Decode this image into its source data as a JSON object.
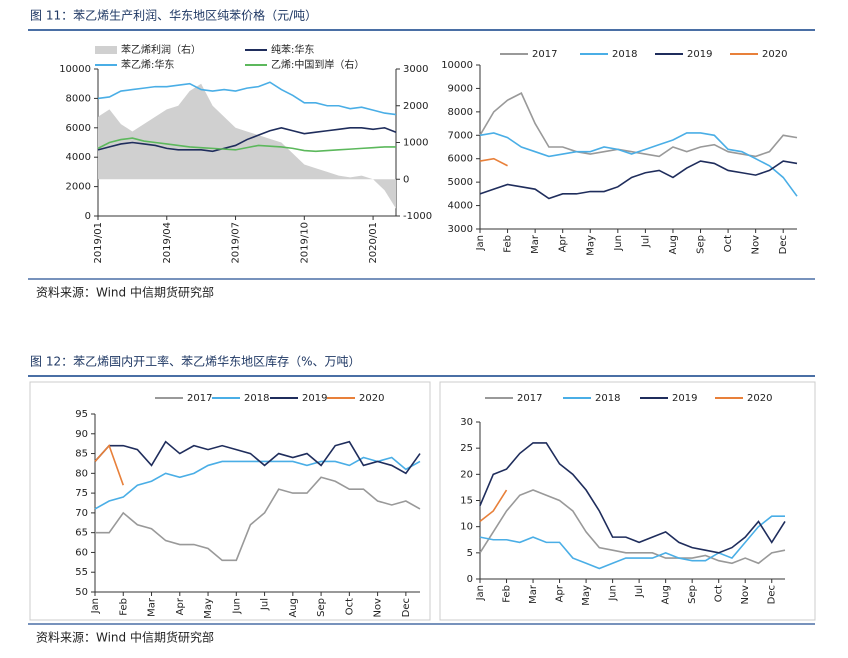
{
  "figures": [
    {
      "title": "图 11：苯乙烯生产利润、华东地区纯苯价格（元/吨）",
      "source": "资料来源：Wind  中信期货研究部"
    },
    {
      "title": "图 12：苯乙烯国内开工率、苯乙烯华东地区库存（%、万吨）",
      "source": "资料来源：Wind  中信期货研究部"
    }
  ],
  "chart_data": [
    {
      "type": "line",
      "categories": [
        "2019/01",
        null,
        null,
        null,
        null,
        null,
        "2019/04",
        null,
        null,
        null,
        null,
        null,
        "2019/07",
        null,
        null,
        null,
        null,
        null,
        "2019/10",
        null,
        null,
        null,
        null,
        null,
        "2020/01",
        null,
        null
      ],
      "ylim": [
        0,
        10000
      ],
      "yticks": [
        0,
        2000,
        4000,
        6000,
        8000,
        10000
      ],
      "y2lim": [
        -1000,
        3000
      ],
      "y2ticks": [
        -1000,
        0,
        1000,
        2000,
        3000
      ],
      "series": [
        {
          "name": "苯乙烯利润（右）",
          "color": "#d0d0d0",
          "style": "area",
          "axis": "y2",
          "values": [
            1700,
            1900,
            1500,
            1300,
            1500,
            1700,
            1900,
            2000,
            2400,
            2600,
            2000,
            1700,
            1400,
            1300,
            1200,
            1100,
            1000,
            700,
            400,
            300,
            200,
            100,
            50,
            100,
            0,
            -300,
            -800
          ]
        },
        {
          "name": "纯苯:华东",
          "color": "#1f2d5c",
          "values": [
            4500,
            4700,
            4900,
            5000,
            4900,
            4800,
            4600,
            4500,
            4500,
            4500,
            4400,
            4600,
            4800,
            5200,
            5500,
            5800,
            6000,
            5800,
            5600,
            5700,
            5800,
            5900,
            6000,
            6000,
            5900,
            6000,
            5700
          ]
        },
        {
          "name": "苯乙烯:华东",
          "color": "#4aaee6",
          "values": [
            8000,
            8100,
            8500,
            8600,
            8700,
            8800,
            8800,
            8900,
            9000,
            8600,
            8500,
            8600,
            8500,
            8700,
            8800,
            9100,
            8600,
            8200,
            7700,
            7700,
            7500,
            7500,
            7300,
            7400,
            7200,
            7000,
            6900
          ]
        },
        {
          "name": "乙烯:中国到岸（右）",
          "color": "#5cb85c",
          "axis": "y2",
          "values": [
            840,
            1000,
            1080,
            1120,
            1040,
            1000,
            960,
            920,
            880,
            860,
            840,
            820,
            800,
            860,
            920,
            900,
            880,
            840,
            780,
            760,
            780,
            800,
            820,
            840,
            860,
            880,
            880
          ]
        }
      ]
    },
    {
      "type": "line",
      "categories": [
        "Jan",
        null,
        "Feb",
        null,
        "Mar",
        null,
        "Apr",
        null,
        "May",
        null,
        "Jun",
        null,
        "Jul",
        null,
        "Aug",
        null,
        "Sep",
        null,
        "Oct",
        null,
        "Nov",
        null,
        "Dec",
        null
      ],
      "ylim": [
        3000,
        10000
      ],
      "yticks": [
        3000,
        4000,
        5000,
        6000,
        7000,
        8000,
        9000,
        10000
      ],
      "series": [
        {
          "name": "2017",
          "color": "#999999",
          "values": [
            7000,
            8000,
            8500,
            8800,
            7500,
            6500,
            6500,
            6300,
            6200,
            6300,
            6400,
            6300,
            6200,
            6100,
            6500,
            6300,
            6500,
            6600,
            6300,
            6200,
            6100,
            6300,
            7000,
            6900
          ]
        },
        {
          "name": "2018",
          "color": "#4aaee6",
          "values": [
            7000,
            7100,
            6900,
            6500,
            6300,
            6100,
            6200,
            6300,
            6300,
            6500,
            6400,
            6200,
            6400,
            6600,
            6800,
            7100,
            7100,
            7000,
            6400,
            6300,
            6000,
            5700,
            5200,
            4400
          ]
        },
        {
          "name": "2019",
          "color": "#1f2d5c",
          "values": [
            4500,
            4700,
            4900,
            4800,
            4700,
            4300,
            4500,
            4500,
            4600,
            4600,
            4800,
            5200,
            5400,
            5500,
            5200,
            5600,
            5900,
            5800,
            5500,
            5400,
            5300,
            5500,
            5900,
            5800
          ]
        },
        {
          "name": "2020",
          "color": "#e8803a",
          "values": [
            5900,
            6000,
            5700,
            null,
            null,
            null,
            null,
            null,
            null,
            null,
            null,
            null,
            null,
            null,
            null,
            null,
            null,
            null,
            null,
            null,
            null,
            null,
            null,
            null
          ]
        }
      ]
    },
    {
      "type": "line",
      "categories": [
        "Jan",
        null,
        "Feb",
        null,
        "Mar",
        null,
        "Apr",
        null,
        "May",
        null,
        "Jun",
        null,
        "Jul",
        null,
        "Aug",
        null,
        "Sep",
        null,
        "Oct",
        null,
        "Nov",
        null,
        "Dec",
        null
      ],
      "ylim": [
        50,
        95
      ],
      "yticks": [
        50,
        55,
        60,
        65,
        70,
        75,
        80,
        85,
        90,
        95
      ],
      "series": [
        {
          "name": "2017",
          "color": "#999999",
          "values": [
            65,
            65,
            70,
            67,
            66,
            63,
            62,
            62,
            61,
            58,
            58,
            67,
            70,
            76,
            75,
            75,
            79,
            78,
            76,
            76,
            73,
            72,
            73,
            71
          ]
        },
        {
          "name": "2018",
          "color": "#4aaee6",
          "values": [
            71,
            73,
            74,
            77,
            78,
            80,
            79,
            80,
            82,
            83,
            83,
            83,
            83,
            83,
            83,
            82,
            83,
            83,
            82,
            84,
            83,
            84,
            81,
            83
          ]
        },
        {
          "name": "2019",
          "color": "#1f2d5c",
          "values": [
            83,
            87,
            87,
            86,
            82,
            88,
            85,
            87,
            86,
            87,
            86,
            85,
            82,
            85,
            84,
            85,
            82,
            87,
            88,
            82,
            83,
            82,
            80,
            85
          ]
        },
        {
          "name": "2020",
          "color": "#e8803a",
          "values": [
            83,
            87,
            77,
            null,
            null,
            null,
            null,
            null,
            null,
            null,
            null,
            null,
            null,
            null,
            null,
            null,
            null,
            null,
            null,
            null,
            null,
            null,
            null,
            null
          ]
        }
      ]
    },
    {
      "type": "line",
      "categories": [
        "Jan",
        null,
        "Feb",
        null,
        "Mar",
        null,
        "Apr",
        null,
        "May",
        null,
        "Jun",
        null,
        "Jul",
        null,
        "Aug",
        null,
        "Sep",
        null,
        "Oct",
        null,
        "Nov",
        null,
        "Dec",
        null
      ],
      "ylim": [
        0,
        30
      ],
      "yticks": [
        0,
        5,
        10,
        15,
        20,
        25,
        30
      ],
      "series": [
        {
          "name": "2017",
          "color": "#999999",
          "values": [
            5,
            9,
            13,
            16,
            17,
            16,
            15,
            13,
            9,
            6,
            5.5,
            5,
            5,
            5,
            4,
            4,
            4,
            4.5,
            3.5,
            3,
            4,
            3,
            5,
            5.5
          ]
        },
        {
          "name": "2018",
          "color": "#4aaee6",
          "values": [
            8,
            7.5,
            7.5,
            7,
            8,
            7,
            7,
            4,
            3,
            2,
            3,
            4,
            4,
            4,
            5,
            4,
            3.5,
            3.5,
            5,
            4,
            7,
            10,
            12,
            12
          ]
        },
        {
          "name": "2019",
          "color": "#1f2d5c",
          "values": [
            14,
            20,
            21,
            24,
            26,
            26,
            22,
            20,
            17,
            13,
            8,
            8,
            7,
            8,
            9,
            7,
            6,
            5.5,
            5,
            6,
            8,
            11,
            7,
            11
          ]
        },
        {
          "name": "2020",
          "color": "#e8803a",
          "values": [
            11,
            13,
            17,
            null,
            null,
            null,
            null,
            null,
            null,
            null,
            null,
            null,
            null,
            null,
            null,
            null,
            null,
            null,
            null,
            null,
            null,
            null,
            null,
            null
          ]
        }
      ]
    }
  ]
}
